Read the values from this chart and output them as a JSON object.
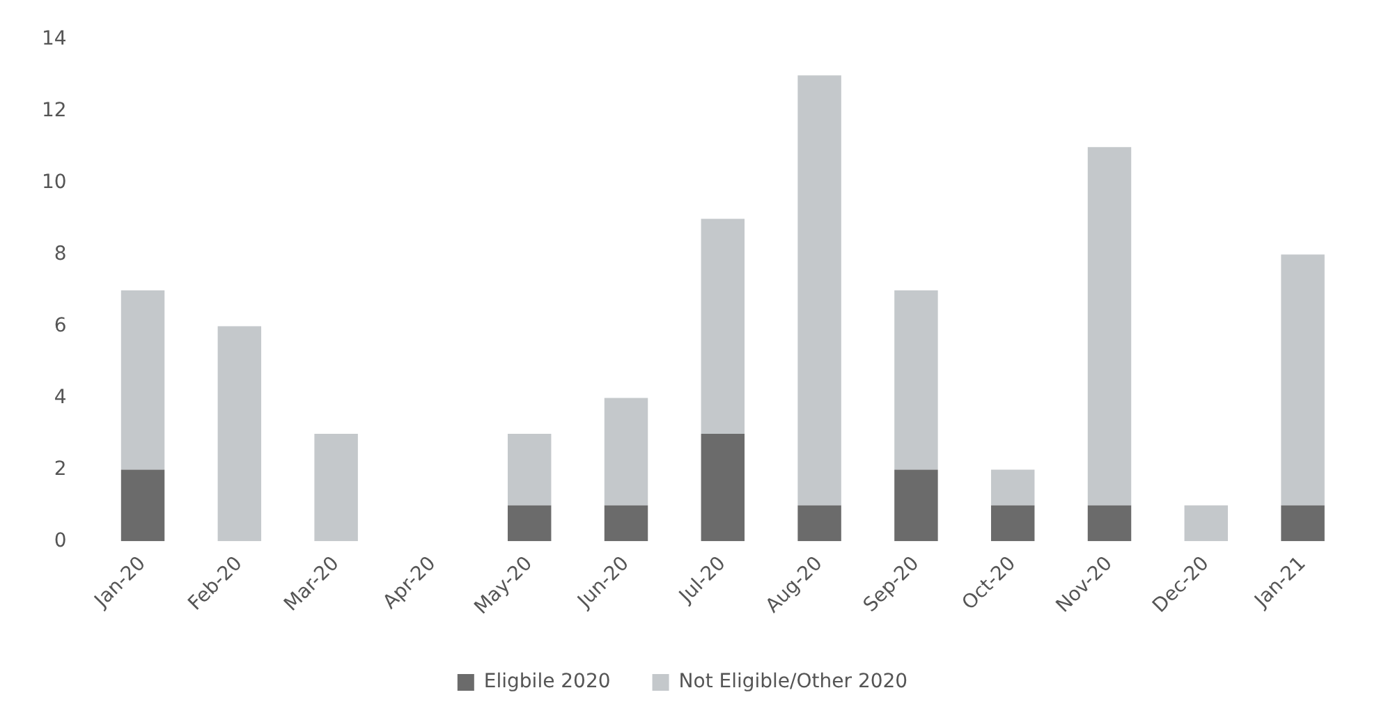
{
  "chart_data": {
    "type": "bar",
    "stacked": true,
    "categories": [
      "Jan-20",
      "Feb-20",
      "Mar-20",
      "Apr-20",
      "May-20",
      "Jun-20",
      "Jul-20",
      "Aug-20",
      "Sep-20",
      "Oct-20",
      "Nov-20",
      "Dec-20",
      "Jan-21"
    ],
    "series": [
      {
        "name": "Eligbile 2020",
        "color": "#6b6b6b",
        "values": [
          2,
          0,
          0,
          0,
          1,
          1,
          3,
          1,
          2,
          1,
          1,
          0,
          1
        ]
      },
      {
        "name": "Not Eligible/Other 2020",
        "color": "#c4c8cb",
        "values": [
          5,
          6,
          3,
          0,
          2,
          3,
          6,
          12,
          5,
          1,
          10,
          1,
          7
        ]
      }
    ],
    "ylim": [
      0,
      14
    ],
    "yticks": [
      0,
      2,
      4,
      6,
      8,
      10,
      12,
      14
    ],
    "grid": false,
    "legend": "bottom"
  }
}
